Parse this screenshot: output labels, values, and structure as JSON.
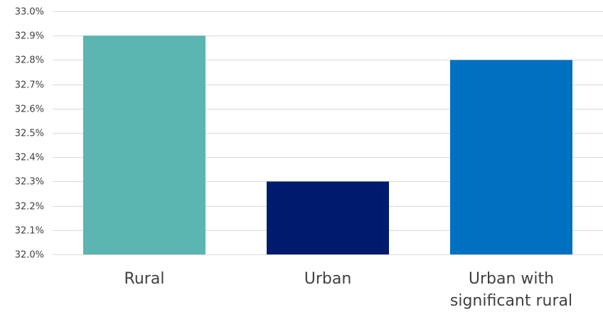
{
  "chart_data": {
    "type": "bar",
    "title": "",
    "xlabel": "",
    "ylabel": "",
    "categories": [
      "Rural",
      "Urban",
      "Urban with significant rural"
    ],
    "category_label_lines": [
      [
        "Rural"
      ],
      [
        "Urban"
      ],
      [
        "Urban with",
        "significant rural"
      ]
    ],
    "values": [
      32.9,
      32.3,
      32.8
    ],
    "colors": [
      "#5BB5B0",
      "#001B6E",
      "#0070C0"
    ],
    "ylim": [
      32.0,
      33.0
    ],
    "yticks": [
      32.0,
      32.1,
      32.2,
      32.3,
      32.4,
      32.5,
      32.6,
      32.7,
      32.8,
      32.9,
      33.0
    ],
    "ytick_labels": [
      "32.0%",
      "32.1%",
      "32.2%",
      "32.3%",
      "32.4%",
      "32.5%",
      "32.6%",
      "32.7%",
      "32.8%",
      "32.9%",
      "33.0%"
    ],
    "grid": true,
    "legend": "none",
    "gridline_color": "#D9D9D9",
    "text_color": "#404040"
  }
}
